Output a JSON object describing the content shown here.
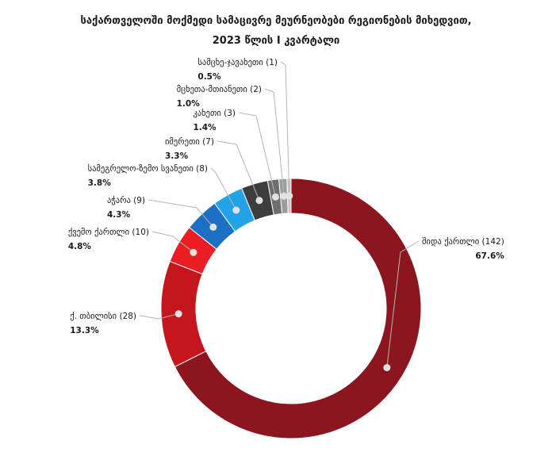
{
  "chart_data": {
    "type": "pie",
    "style": "donut",
    "title_lines": [
      "საქართველოში მოქმედი სამაცივრე მეურნეობები რეგიონების მიხედვით,",
      "2023 წლის I კვარტალი"
    ],
    "slices": [
      {
        "label": "შიდა ქართლი (142)",
        "percent": "67.6%",
        "value": 67.6,
        "color": "#8b1620"
      },
      {
        "label": "ქ. თბილისი (28)",
        "percent": "13.3%",
        "value": 13.3,
        "color": "#c4161c"
      },
      {
        "label": "ქვემო ქართლი (10)",
        "percent": "4.8%",
        "value": 4.8,
        "color": "#ec1c24"
      },
      {
        "label": "აჭარა (9)",
        "percent": "4.3%",
        "value": 4.3,
        "color": "#1d6fc6"
      },
      {
        "label": "სამეგრელო-ზემო სვანეთი (8)",
        "percent": "3.8%",
        "value": 3.8,
        "color": "#22a3e8"
      },
      {
        "label": "იმერეთი (7)",
        "percent": "3.3%",
        "value": 3.3,
        "color": "#3d3d3d"
      },
      {
        "label": "კახეთი (3)",
        "percent": "1.4%",
        "value": 1.4,
        "color": "#6e6e6e"
      },
      {
        "label": "მცხეთა-მთიანეთი (2)",
        "percent": "1.0%",
        "value": 1.0,
        "color": "#9c9c9c"
      },
      {
        "label": "სამცხე-ჯავახეთი (1)",
        "percent": "0.5%",
        "value": 0.5,
        "color": "#c6c6c6"
      }
    ],
    "legend": "none"
  }
}
